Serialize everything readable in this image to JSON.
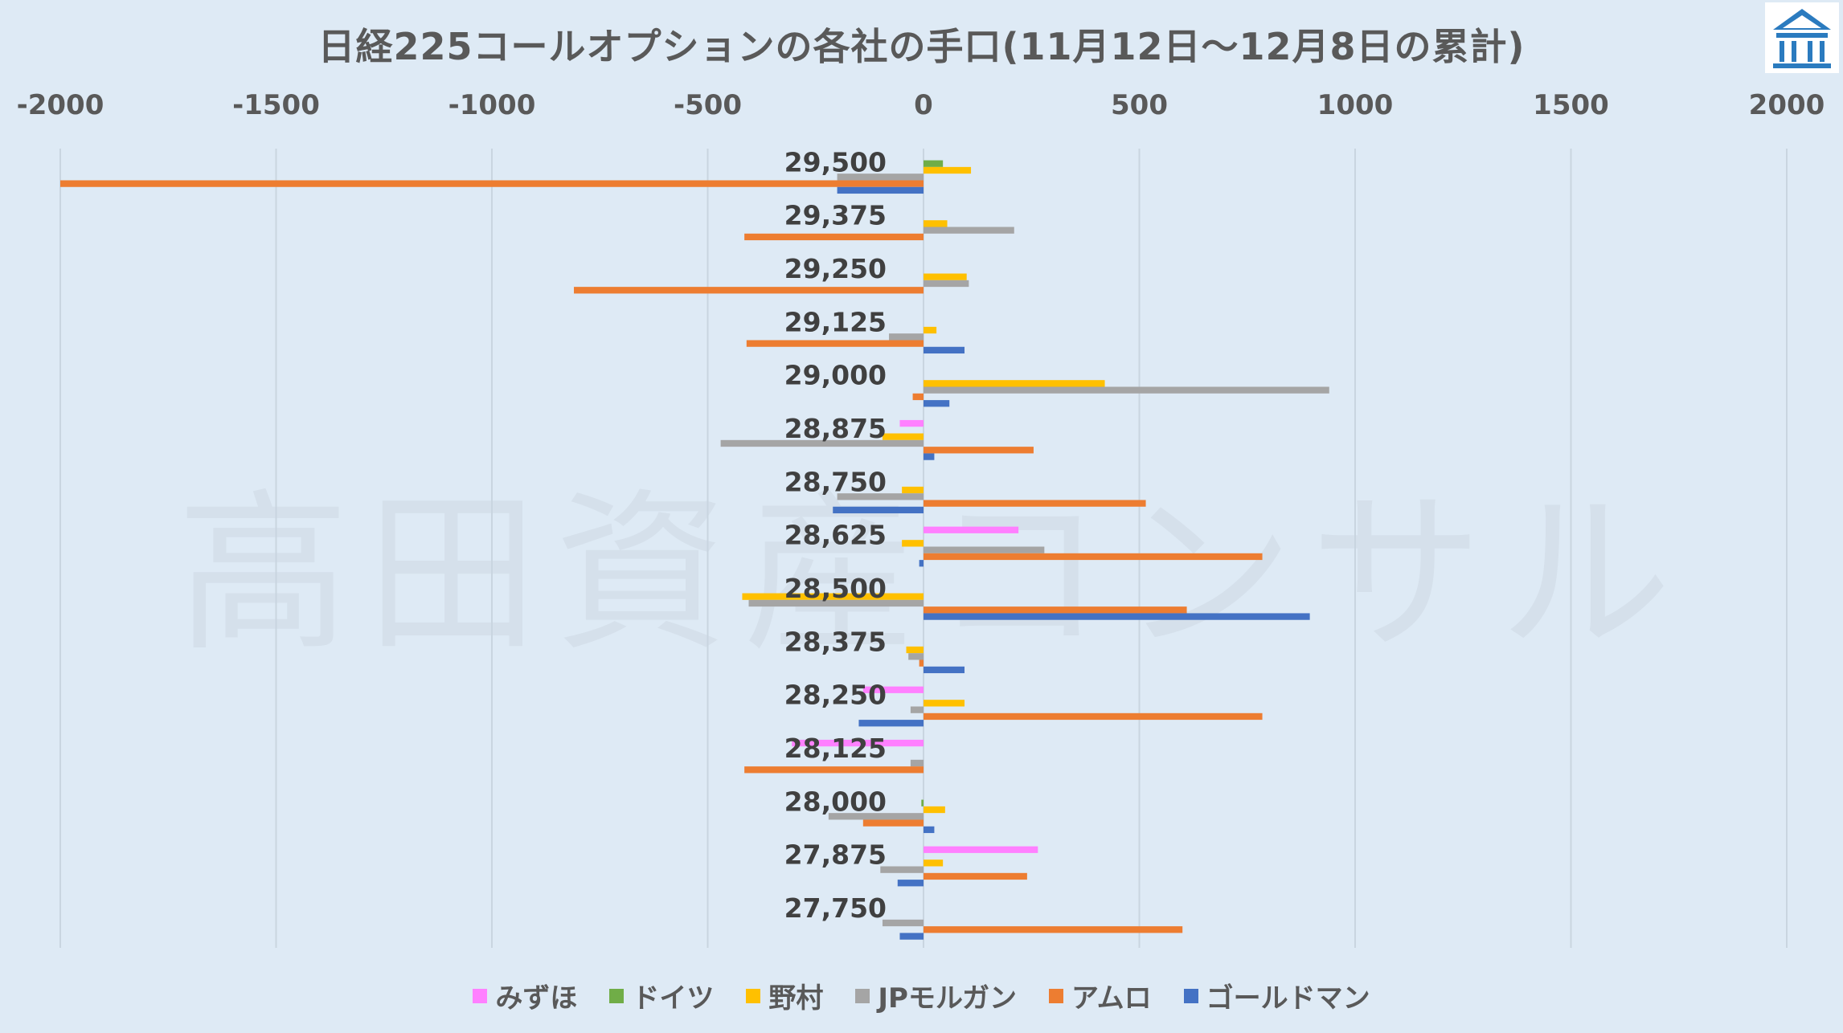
{
  "chart_data": {
    "type": "bar",
    "orientation": "horizontal",
    "title": "日経225コールオプションの各社の手口(11月12日～12月8日の累計)",
    "xlim": [
      -2000,
      2000
    ],
    "x_ticks": [
      "-2000",
      "-1500",
      "-1000",
      "-500",
      "0",
      "500",
      "1000",
      "1500",
      "2000"
    ],
    "x_tick_values": [
      -2000,
      -1500,
      -1000,
      -500,
      0,
      500,
      1000,
      1500,
      2000
    ],
    "x_axis_position": "top",
    "grid": "vertical",
    "legend_position": "bottom",
    "categories": [
      "29,500",
      "29,375",
      "29,250",
      "29,125",
      "29,000",
      "28,875",
      "28,750",
      "28,625",
      "28,500",
      "28,375",
      "28,250",
      "28,125",
      "28,000",
      "27,875",
      "27,750"
    ],
    "series": [
      {
        "name": "みずほ",
        "color": "#ff80ff",
        "values": [
          0,
          0,
          0,
          0,
          0,
          -55,
          0,
          220,
          0,
          0,
          -140,
          -305,
          0,
          265,
          0
        ]
      },
      {
        "name": "ドイツ",
        "color": "#70ad47",
        "values": [
          45,
          0,
          0,
          0,
          0,
          0,
          0,
          0,
          0,
          0,
          0,
          0,
          -5,
          0,
          0
        ]
      },
      {
        "name": "野村",
        "color": "#ffc000",
        "values": [
          110,
          55,
          100,
          30,
          420,
          -95,
          -50,
          -50,
          -420,
          -40,
          95,
          0,
          50,
          45,
          0
        ]
      },
      {
        "name": "JPモルガン",
        "color": "#a5a5a5",
        "values": [
          -200,
          210,
          105,
          -80,
          940,
          -470,
          -200,
          280,
          -405,
          -35,
          -30,
          -30,
          -220,
          -100,
          -95
        ]
      },
      {
        "name": "アムロ",
        "color": "#ed7d31",
        "values": [
          -2000,
          -415,
          -810,
          -410,
          -25,
          255,
          515,
          785,
          610,
          -10,
          785,
          -415,
          -140,
          240,
          600
        ]
      },
      {
        "name": "ゴールドマン",
        "color": "#4472c4",
        "values": [
          -200,
          0,
          0,
          95,
          60,
          25,
          -210,
          -10,
          895,
          95,
          -150,
          0,
          25,
          -60,
          -55
        ]
      }
    ]
  },
  "watermark": "高田資産コンサル",
  "logo_icon": "building-pillar-icon"
}
